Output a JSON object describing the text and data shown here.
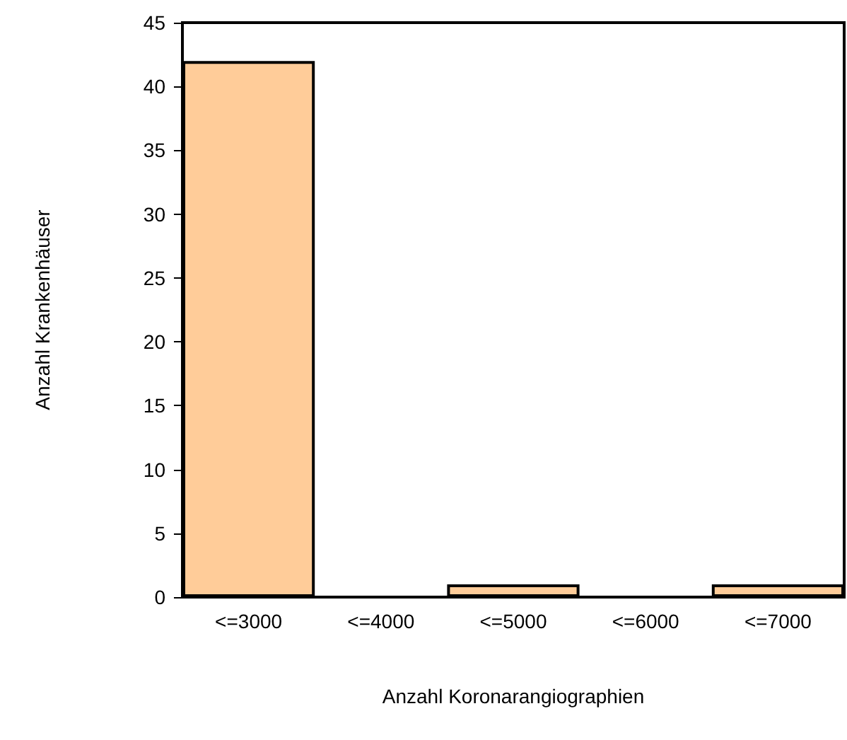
{
  "chart_data": {
    "type": "bar",
    "xlabel": "Anzahl Koronarangiographien",
    "ylabel": "Anzahl Krankenhäuser",
    "categories": [
      "<=3000",
      "<=4000",
      "<=5000",
      "<=6000",
      "<=7000"
    ],
    "values": [
      42,
      0,
      1,
      0,
      1
    ],
    "color": "#ffcc99",
    "ylim": [
      0,
      45
    ],
    "yticks": [
      0,
      5,
      10,
      15,
      20,
      25,
      30,
      35,
      40,
      45
    ],
    "grid": false
  }
}
